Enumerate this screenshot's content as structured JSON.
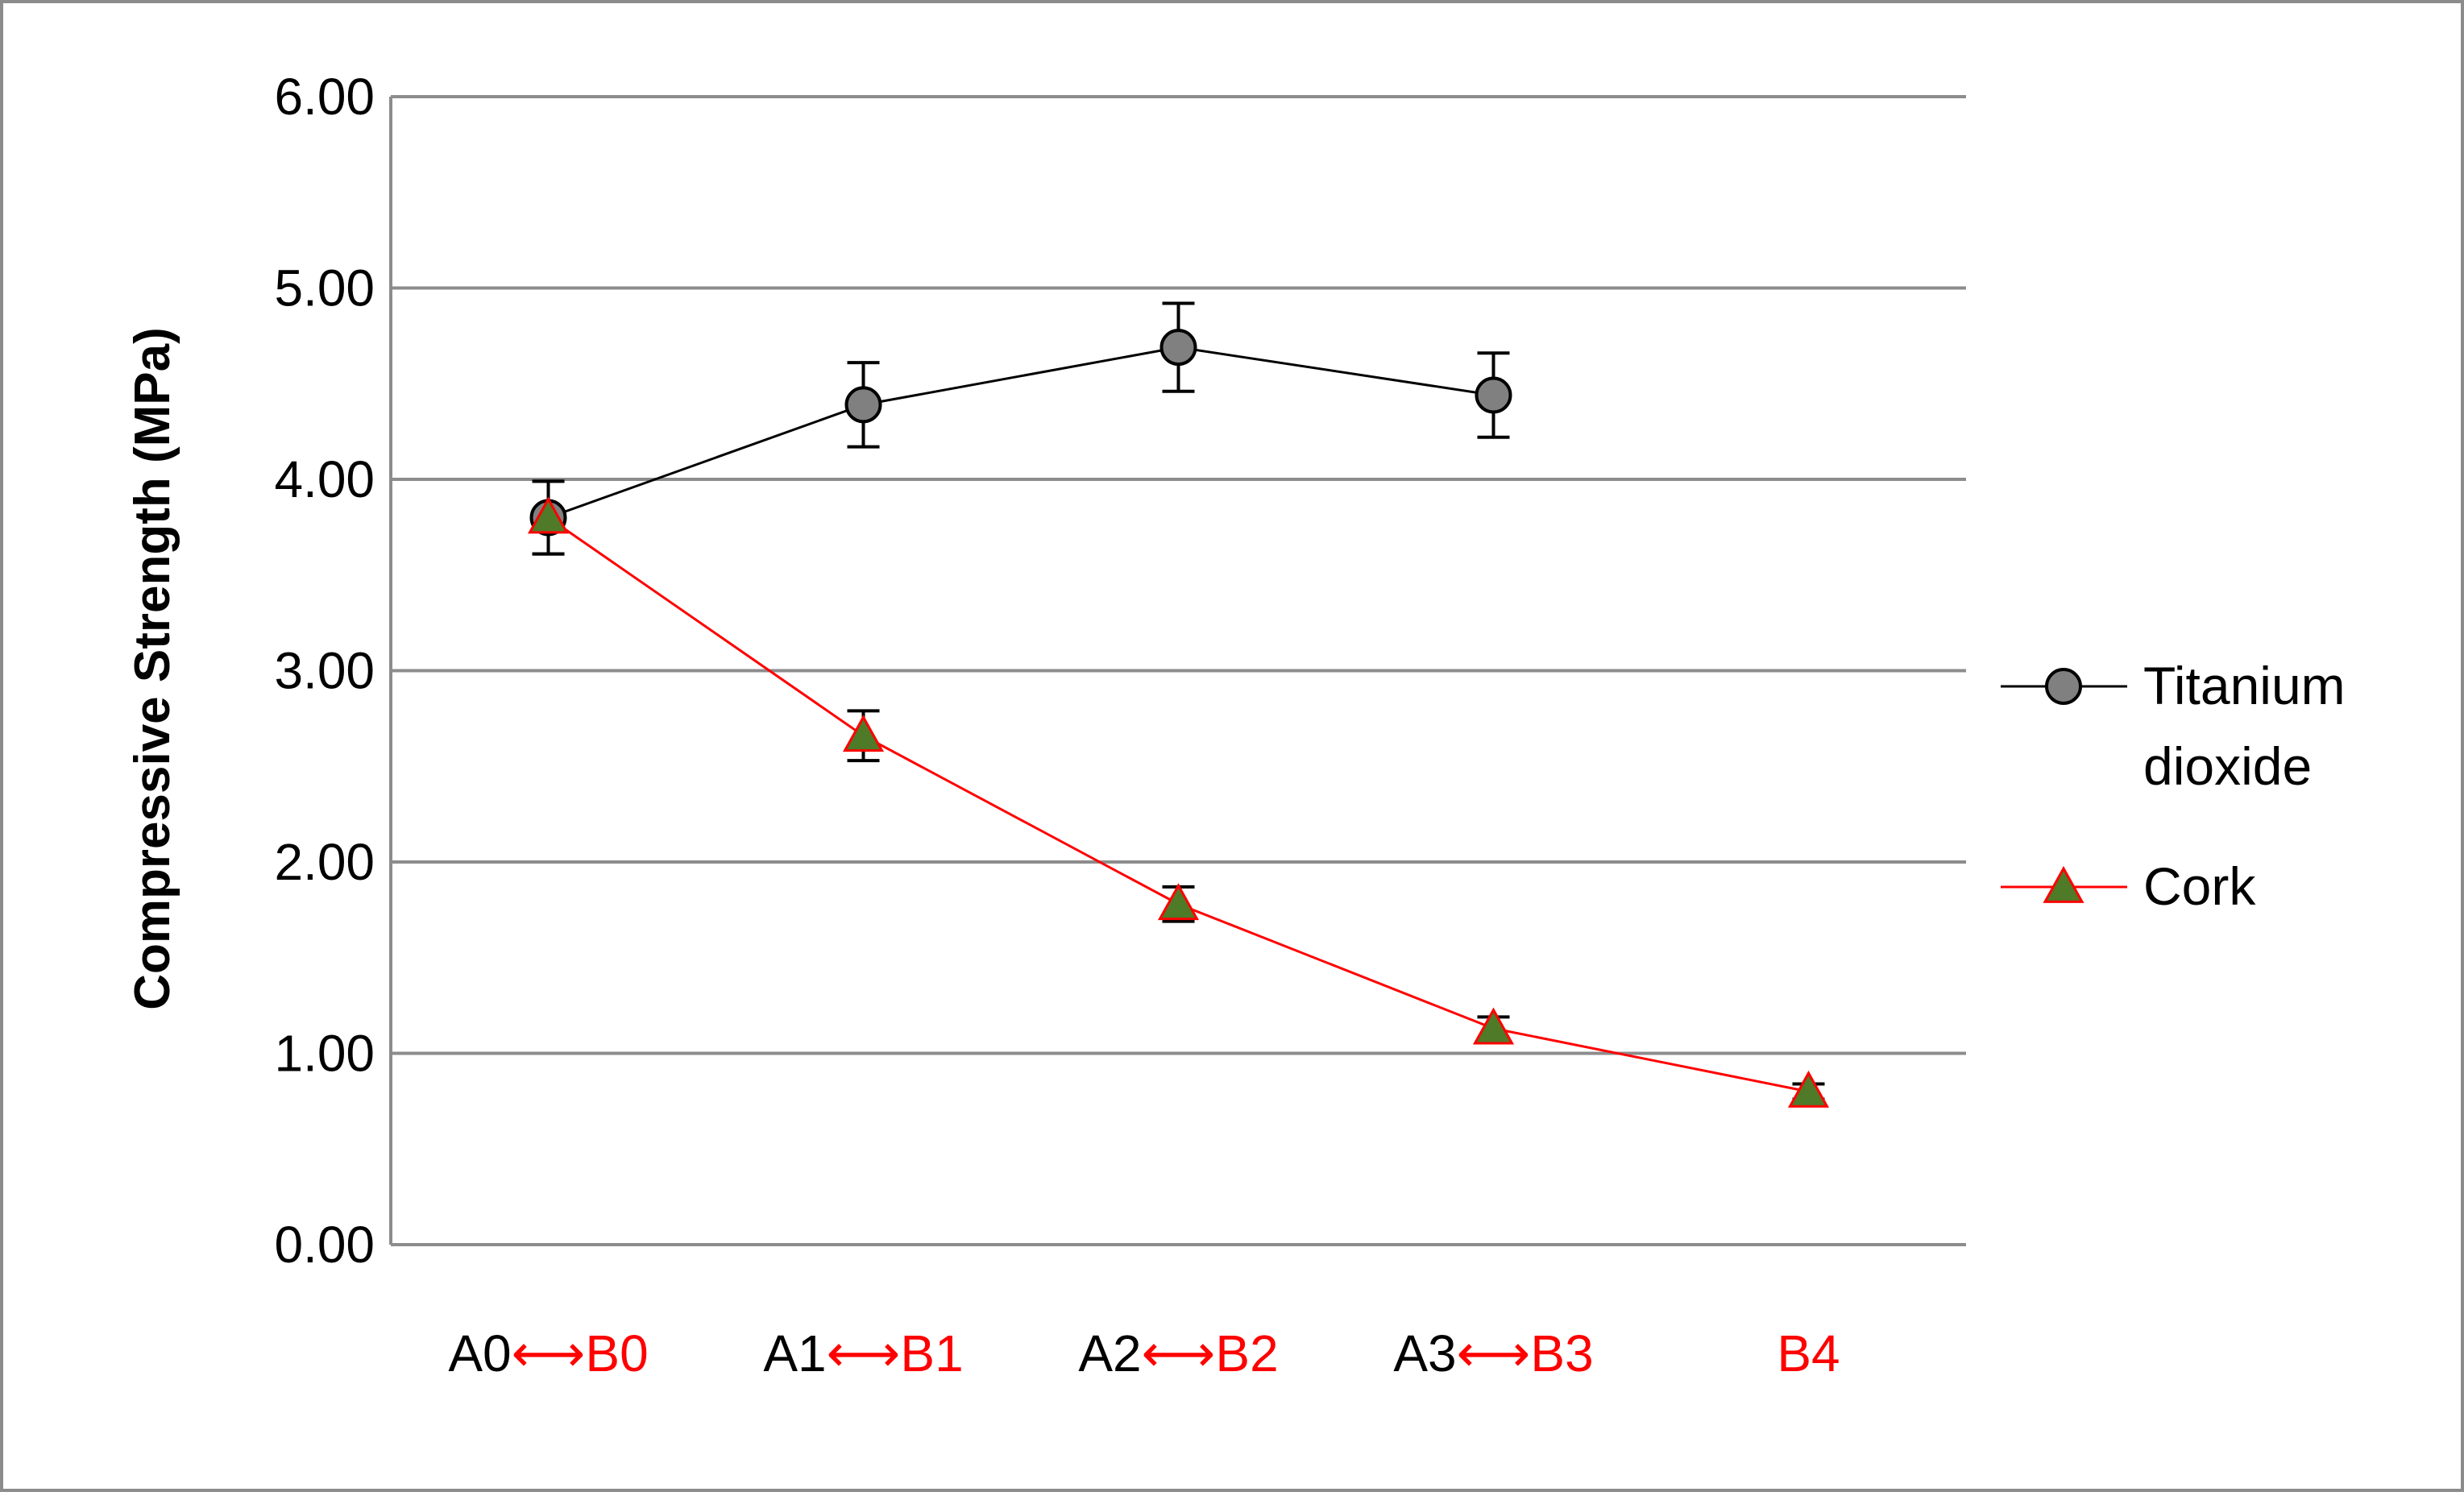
{
  "chart_data": {
    "type": "line",
    "categories": [
      {
        "a": "A0",
        "arrow": "⟷",
        "b": "B0"
      },
      {
        "a": "A1",
        "arrow": "⟷",
        "b": "B1"
      },
      {
        "a": "A2",
        "arrow": "⟷",
        "b": "B2"
      },
      {
        "a": "A3",
        "arrow": "⟷",
        "b": "B3"
      },
      {
        "a": "",
        "arrow": "",
        "b": "B4"
      }
    ],
    "ylabel": "Compressive Strength (MPa)",
    "ylim": [
      0,
      6
    ],
    "yticks": [
      "0.00",
      "1.00",
      "2.00",
      "3.00",
      "4.00",
      "5.00",
      "6.00"
    ],
    "grid": true,
    "legend_position": "right",
    "series": [
      {
        "name": "Titanium dioxide",
        "name_lines": [
          "Titanium",
          "dioxide"
        ],
        "marker": "circle",
        "line_color": "#000000",
        "marker_color": "#808080",
        "values": [
          3.8,
          4.39,
          4.69,
          4.44,
          null
        ],
        "errors": [
          0.19,
          0.22,
          0.23,
          0.22,
          null
        ]
      },
      {
        "name": "Cork",
        "name_lines": [
          "Cork"
        ],
        "marker": "triangle",
        "line_color": "#ff0000",
        "marker_color": "#4f7a28",
        "values": [
          3.8,
          2.66,
          1.78,
          1.13,
          0.8
        ],
        "errors": [
          0.19,
          0.13,
          0.09,
          0.06,
          0.04
        ]
      }
    ],
    "colors": {
      "category_a": "#000000",
      "category_b": "#ff0000",
      "grid": "#8c8c8c",
      "border": "#8c8c8c"
    }
  }
}
